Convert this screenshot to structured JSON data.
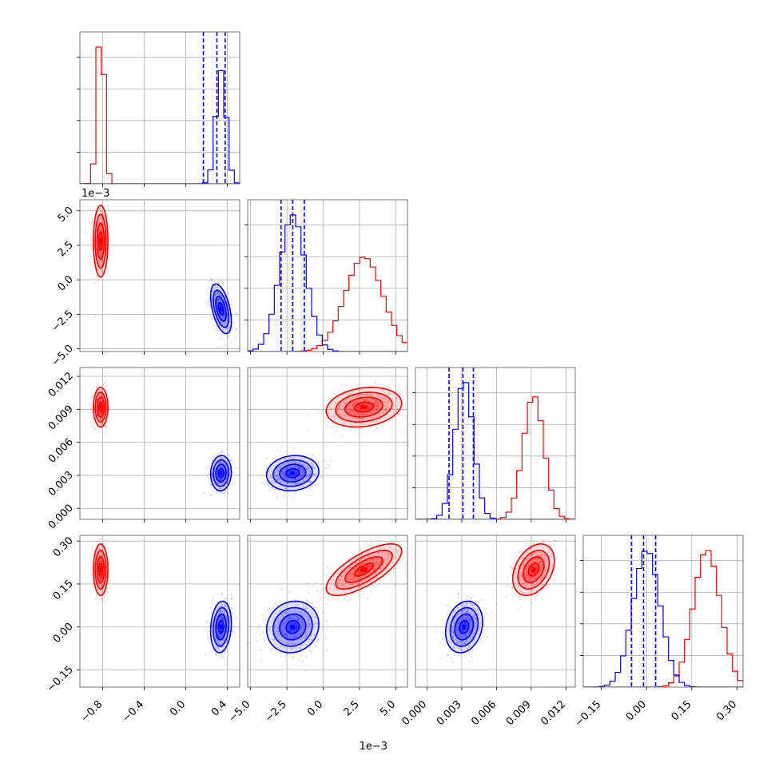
{
  "chart_data": {
    "type": "corner",
    "grid": true,
    "series": [
      {
        "color": "#ff0000",
        "mean": [
          -0.82,
          0.0028,
          0.0092,
          0.2
        ],
        "std": [
          0.035,
          0.0013,
          0.0009,
          0.045
        ],
        "corr": [
          [
            1,
            0,
            0,
            0
          ],
          [
            0,
            1,
            0.2,
            0.72
          ],
          [
            0,
            0.2,
            1,
            0.35
          ],
          [
            0,
            0.72,
            0.35,
            1
          ]
        ]
      },
      {
        "color": "#0000ff",
        "mean": [
          0.34,
          -0.0021,
          0.0032,
          0.0
        ],
        "std": [
          0.05,
          0.0009,
          0.0008,
          0.045
        ],
        "corr": [
          [
            1,
            -0.5,
            0.05,
            0.15
          ],
          [
            -0.5,
            1,
            0.1,
            0.1
          ],
          [
            0.05,
            0.1,
            1,
            0.2
          ],
          [
            0.15,
            0.1,
            0.2,
            1
          ]
        ],
        "quantile_lines": [
          [
            0.17,
            0.3,
            0.38
          ],
          [
            -0.0029,
            -0.0021,
            -0.0013
          ],
          [
            0.0019,
            0.0031,
            0.004
          ],
          [
            -0.05,
            -0.01,
            0.03
          ]
        ]
      }
    ],
    "axes": [
      {
        "range": [
          -1.02,
          0.52
        ],
        "ticks": [
          -0.8,
          -0.4,
          0.0,
          0.4
        ],
        "tick_labels": [
          "−0.8",
          "−0.4",
          "0.0",
          "0.4"
        ],
        "offset_label": ""
      },
      {
        "range": [
          -0.0052,
          0.0058
        ],
        "ticks": [
          -0.005,
          -0.0025,
          0.0,
          0.0025,
          0.005
        ],
        "tick_labels": [
          "−5.0",
          "−2.5",
          "0.0",
          "2.5",
          "5.0"
        ],
        "offset_label": "1e−3"
      },
      {
        "range": [
          -0.001,
          0.0128
        ],
        "ticks": [
          0.0,
          0.003,
          0.006,
          0.009,
          0.012
        ],
        "tick_labels": [
          "0.000",
          "0.003",
          "0.006",
          "0.009",
          "0.012"
        ],
        "offset_label": ""
      },
      {
        "range": [
          -0.21,
          0.32
        ],
        "ticks": [
          -0.15,
          0.0,
          0.15,
          0.3
        ],
        "tick_labels": [
          "−0.15",
          "0.00",
          "0.15",
          "0.30"
        ],
        "offset_label": ""
      }
    ],
    "histograms": [
      {
        "ymax": 0.0,
        "red": [],
        "blue": []
      }
    ]
  }
}
